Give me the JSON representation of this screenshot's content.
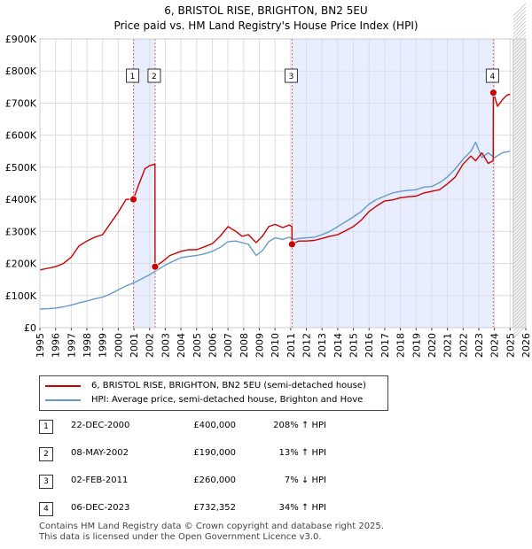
{
  "title_line1": "6, BRISTOL RISE, BRIGHTON, BN2 5EU",
  "title_line2": "Price paid vs. HM Land Registry's House Price Index (HPI)",
  "colors": {
    "property": "#cc0000",
    "hpi": "#6699cc",
    "shade": "#e8eeff",
    "marker_line": "#dd6666",
    "grid": "#dddddd"
  },
  "legend": {
    "property_label": "6, BRISTOL RISE, BRIGHTON, BN2 5EU (semi-detached house)",
    "hpi_label": "HPI: Average price, semi-detached house, Brighton and Hove"
  },
  "sales": [
    {
      "num": "1",
      "date": "22-DEC-2000",
      "price": "£400,000",
      "hpi": "208% ↑ HPI"
    },
    {
      "num": "2",
      "date": "08-MAY-2002",
      "price": "£190,000",
      "hpi": "13% ↑ HPI"
    },
    {
      "num": "3",
      "date": "02-FEB-2011",
      "price": "£260,000",
      "hpi": "7% ↓ HPI"
    },
    {
      "num": "4",
      "date": "06-DEC-2023",
      "price": "£732,352",
      "hpi": "34% ↑ HPI"
    }
  ],
  "footer": {
    "line1": "Contains HM Land Registry data © Crown copyright and database right 2025.",
    "line2": "This data is licensed under the Open Government Licence v3.0."
  },
  "chart_data": {
    "type": "line",
    "title": "6, BRISTOL RISE, BRIGHTON, BN2 5EU",
    "subtitle": "Price paid vs. HM Land Registry's House Price Index (HPI)",
    "xlabel": "",
    "ylabel": "",
    "xlim": [
      1995,
      2026
    ],
    "ylim": [
      0,
      900000
    ],
    "x_ticks": [
      "1995",
      "1996",
      "1997",
      "1998",
      "1999",
      "2000",
      "2001",
      "2002",
      "2003",
      "2004",
      "2005",
      "2006",
      "2007",
      "2008",
      "2009",
      "2010",
      "2011",
      "2012",
      "2013",
      "2014",
      "2015",
      "2016",
      "2017",
      "2018",
      "2019",
      "2020",
      "2021",
      "2022",
      "2023",
      "2024",
      "2025",
      "2026"
    ],
    "y_ticks": [
      {
        "value": 0,
        "label": "£0"
      },
      {
        "value": 100000,
        "label": "£100K"
      },
      {
        "value": 200000,
        "label": "£200K"
      },
      {
        "value": 300000,
        "label": "£300K"
      },
      {
        "value": 400000,
        "label": "£400K"
      },
      {
        "value": 500000,
        "label": "£500K"
      },
      {
        "value": 600000,
        "label": "£600K"
      },
      {
        "value": 700000,
        "label": "£700K"
      },
      {
        "value": 800000,
        "label": "£800K"
      },
      {
        "value": 900000,
        "label": "£900K"
      }
    ],
    "shaded_ranges": [
      [
        2000.97,
        2002.35
      ],
      [
        2011.09,
        2023.93
      ]
    ],
    "future_hatch_from": 2025.2,
    "markers": [
      {
        "num": "1",
        "x": 2000.97,
        "y": 400000
      },
      {
        "num": "2",
        "x": 2002.35,
        "y": 190000
      },
      {
        "num": "3",
        "x": 2011.09,
        "y": 260000
      },
      {
        "num": "4",
        "x": 2023.93,
        "y": 732352
      }
    ],
    "series": [
      {
        "name": "6, BRISTOL RISE, BRIGHTON, BN2 5EU (semi-detached house)",
        "color": "#cc0000",
        "x": [
          1995.0,
          1995.5,
          1996.0,
          1996.5,
          1997.0,
          1997.5,
          1998.0,
          1998.5,
          1999.0,
          1999.5,
          2000.0,
          2000.5,
          2000.97,
          2001.3,
          2001.7,
          2002.0,
          2002.34,
          2002.35,
          2002.8,
          2003.3,
          2004.0,
          2004.5,
          2005.0,
          2005.5,
          2006.0,
          2006.5,
          2007.0,
          2007.5,
          2007.9,
          2008.3,
          2008.8,
          2009.2,
          2009.6,
          2010.0,
          2010.5,
          2010.9,
          2011.08,
          2011.09,
          2011.5,
          2012.0,
          2012.5,
          2013.0,
          2013.5,
          2014.0,
          2014.5,
          2015.0,
          2015.5,
          2016.0,
          2016.5,
          2017.0,
          2017.5,
          2018.0,
          2018.5,
          2019.0,
          2019.5,
          2020.0,
          2020.5,
          2021.0,
          2021.5,
          2022.0,
          2022.5,
          2022.8,
          2023.2,
          2023.6,
          2023.92,
          2023.93,
          2024.2,
          2024.5,
          2024.8,
          2025.0
        ],
        "y": [
          180000,
          185000,
          190000,
          200000,
          220000,
          255000,
          270000,
          282000,
          290000,
          325000,
          360000,
          400000,
          400000,
          445000,
          495000,
          505000,
          510000,
          190000,
          205000,
          225000,
          238000,
          243000,
          243000,
          252000,
          262000,
          285000,
          315000,
          300000,
          285000,
          290000,
          265000,
          285000,
          315000,
          322000,
          312000,
          320000,
          315000,
          260000,
          270000,
          270000,
          272000,
          278000,
          285000,
          290000,
          302000,
          315000,
          335000,
          362000,
          380000,
          395000,
          398000,
          405000,
          408000,
          410000,
          420000,
          425000,
          430000,
          448000,
          470000,
          510000,
          535000,
          520000,
          545000,
          512000,
          520000,
          732352,
          690000,
          710000,
          725000,
          728000
        ]
      },
      {
        "name": "HPI: Average price, semi-detached house, Brighton and Hove",
        "color": "#6699cc",
        "x": [
          1995.0,
          1995.5,
          1996.0,
          1996.5,
          1997.0,
          1997.5,
          1998.0,
          1998.5,
          1999.0,
          1999.5,
          2000.0,
          2000.5,
          2001.0,
          2001.5,
          2002.0,
          2002.5,
          2003.0,
          2003.5,
          2004.0,
          2004.5,
          2005.0,
          2005.5,
          2006.0,
          2006.5,
          2007.0,
          2007.5,
          2007.9,
          2008.3,
          2008.8,
          2009.2,
          2009.6,
          2010.0,
          2010.5,
          2010.9,
          2011.2,
          2011.5,
          2012.0,
          2012.5,
          2013.0,
          2013.5,
          2014.0,
          2014.5,
          2015.0,
          2015.5,
          2016.0,
          2016.5,
          2017.0,
          2017.5,
          2018.0,
          2018.5,
          2019.0,
          2019.5,
          2020.0,
          2020.5,
          2021.0,
          2021.5,
          2022.0,
          2022.5,
          2022.8,
          2023.2,
          2023.6,
          2024.0,
          2024.5,
          2025.0
        ],
        "y": [
          58000,
          59000,
          61000,
          65000,
          70000,
          77000,
          83000,
          90000,
          95000,
          105000,
          118000,
          130000,
          140000,
          152000,
          165000,
          180000,
          195000,
          207000,
          218000,
          222000,
          225000,
          230000,
          238000,
          250000,
          268000,
          270000,
          265000,
          260000,
          225000,
          240000,
          268000,
          280000,
          275000,
          282000,
          275000,
          278000,
          280000,
          282000,
          290000,
          300000,
          315000,
          330000,
          345000,
          362000,
          385000,
          400000,
          410000,
          420000,
          425000,
          428000,
          430000,
          438000,
          440000,
          452000,
          470000,
          495000,
          525000,
          550000,
          578000,
          530000,
          545000,
          530000,
          545000,
          550000
        ]
      }
    ]
  }
}
